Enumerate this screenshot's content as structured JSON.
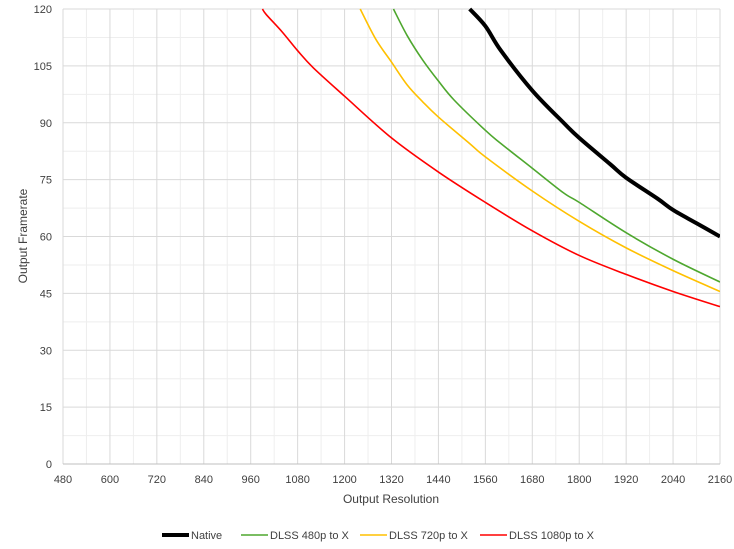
{
  "chart_data": {
    "type": "line",
    "title": "",
    "xlabel": "Output Resolution",
    "ylabel": "Output Framerate",
    "xlim": [
      480,
      2160
    ],
    "ylim": [
      0,
      120
    ],
    "x_ticks": [
      480,
      600,
      720,
      840,
      960,
      1080,
      1200,
      1320,
      1440,
      1560,
      1680,
      1800,
      1920,
      2040,
      2160
    ],
    "y_ticks": [
      0,
      15,
      30,
      45,
      60,
      75,
      90,
      105,
      120
    ],
    "grid": true,
    "legend_position": "bottom",
    "series": [
      {
        "name": "Native",
        "color": "#000000",
        "x": [
          1520,
          1560,
          1600,
          1680,
          1760,
          1800,
          1880,
          1920,
          2000,
          2040,
          2100,
          2160
        ],
        "y": [
          120,
          115.5,
          109,
          98.5,
          90,
          86,
          79,
          75.5,
          70,
          67,
          63.5,
          60
        ]
      },
      {
        "name": "DLSS 480p to X",
        "color": "#4ea72e",
        "x": [
          1325,
          1360,
          1400,
          1440,
          1480,
          1560,
          1600,
          1680,
          1760,
          1800,
          1920,
          2040,
          2160
        ],
        "y": [
          120,
          113,
          106.5,
          101,
          96,
          88,
          84.5,
          78,
          71.5,
          69,
          61,
          54,
          48
        ]
      },
      {
        "name": "DLSS 720p to X",
        "color": "#ffc000",
        "x": [
          1240,
          1280,
          1320,
          1360,
          1400,
          1440,
          1520,
          1560,
          1680,
          1800,
          1920,
          2040,
          2160
        ],
        "y": [
          120,
          112,
          106,
          100,
          95.5,
          91.5,
          84.5,
          81,
          72,
          64,
          57,
          51,
          45.5
        ]
      },
      {
        "name": "DLSS 1080p to X",
        "color": "#ff0000",
        "x": [
          990,
          1000,
          1040,
          1080,
          1120,
          1200,
          1320,
          1440,
          1560,
          1680,
          1800,
          1920,
          2040,
          2160
        ],
        "y": [
          120,
          118.5,
          114,
          109,
          104.5,
          97,
          86,
          77,
          69,
          61.5,
          55,
          50,
          45.5,
          41.5
        ]
      }
    ]
  }
}
